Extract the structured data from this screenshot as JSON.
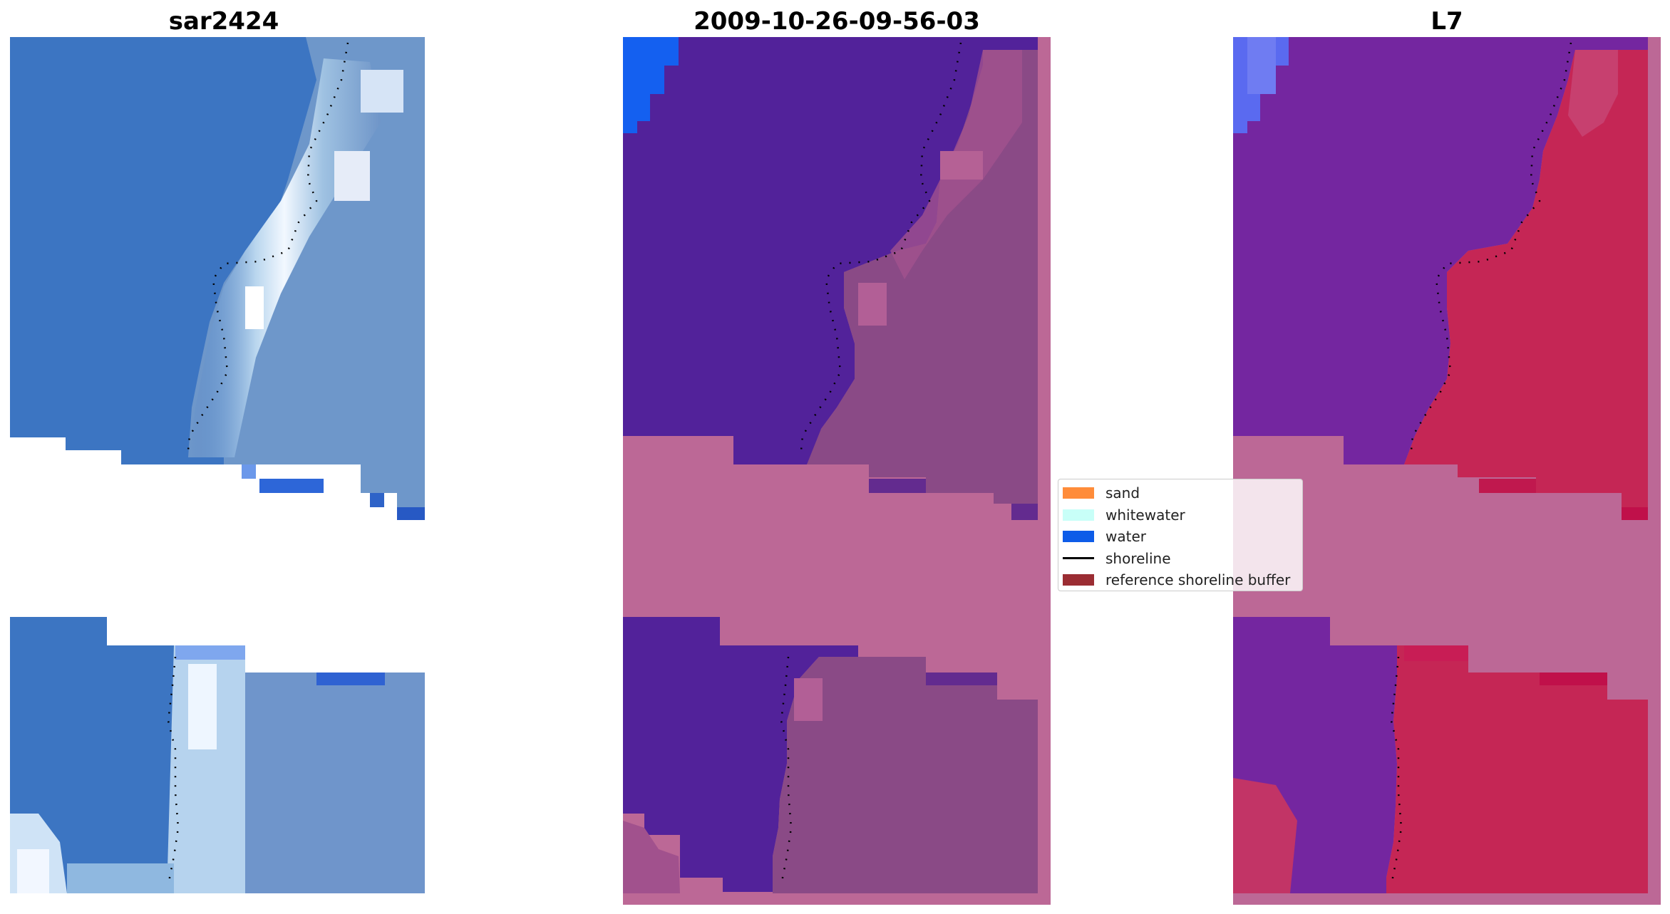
{
  "panels": [
    {
      "title": "sar2424"
    },
    {
      "title": "2009-10-26-09-56-03"
    },
    {
      "title": "L7"
    }
  ],
  "legend": {
    "items": [
      {
        "label": "sand",
        "color": "#ff8c3a"
      },
      {
        "label": "whitewater",
        "color": "#c8fff8"
      },
      {
        "label": "water",
        "color": "#0d5ce8"
      },
      {
        "label": "shoreline",
        "color": "#000000"
      },
      {
        "label": "reference shoreline buffer",
        "color": "#9b2d33"
      }
    ]
  },
  "colors": {
    "rgb_water": "#3f78c4",
    "rgb_foam": "#e8f2fb",
    "class_water_overlay": "#52229a",
    "class_land_overlay": "#b9668f",
    "index_water": "#7426a0",
    "index_land": "#c52655",
    "buffer_pink": "#bc6896"
  }
}
